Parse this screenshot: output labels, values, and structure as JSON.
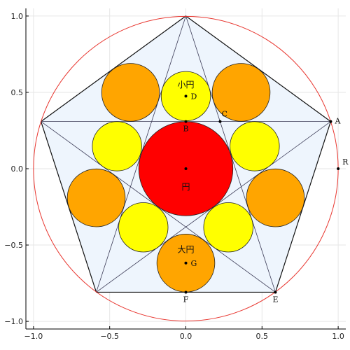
{
  "chart_data": {
    "type": "scatter",
    "title": "",
    "xlabel": "",
    "ylabel": "",
    "xlim": [
      -1.05,
      1.05
    ],
    "ylim": [
      -1.05,
      1.05
    ],
    "grid": true,
    "x_ticks": [
      {
        "value": -1.0,
        "label": "−1.0"
      },
      {
        "value": -0.5,
        "label": "−0.5"
      },
      {
        "value": 0.0,
        "label": "0.0"
      },
      {
        "value": 0.5,
        "label": "0.5"
      },
      {
        "value": 1.0,
        "label": "1.0"
      }
    ],
    "y_ticks": [
      {
        "value": -1.0,
        "label": "−1.0"
      },
      {
        "value": -0.5,
        "label": "−0.5"
      },
      {
        "value": 0.0,
        "label": "0.0"
      },
      {
        "value": 0.5,
        "label": "0.5"
      },
      {
        "value": 1.0,
        "label": "1.0"
      }
    ],
    "outer_circle": {
      "cx": 0,
      "cy": 0,
      "r": 1.0,
      "color": "#e8352e"
    },
    "pentagon": {
      "vertices": [
        [
          0,
          1.0
        ],
        [
          -0.951,
          0.309
        ],
        [
          -0.588,
          -0.809
        ],
        [
          0.588,
          -0.809
        ],
        [
          0.951,
          0.309
        ]
      ],
      "fill": "#eef5fd",
      "stroke": "#111111"
    },
    "red_circle": {
      "cx": 0,
      "cy": 0,
      "r": 0.309,
      "color": "#ff0000",
      "label": "円",
      "label_xy": [
        0,
        -0.12
      ]
    },
    "yellow_circles": {
      "color": "#ffff00",
      "items": [
        {
          "cx": 0.0,
          "cy": 0.475,
          "r": 0.162
        },
        {
          "cx": 0.452,
          "cy": 0.147,
          "r": 0.162
        },
        {
          "cx": 0.279,
          "cy": -0.384,
          "r": 0.162
        },
        {
          "cx": -0.279,
          "cy": -0.384,
          "r": 0.162
        },
        {
          "cx": -0.452,
          "cy": 0.147,
          "r": 0.162
        }
      ],
      "label": "小円",
      "label_xy": [
        0,
        0.55
      ]
    },
    "orange_circles": {
      "color": "#ffa500",
      "items": [
        {
          "cx": 0.0,
          "cy": -0.618,
          "r": 0.19
        },
        {
          "cx": 0.588,
          "cy": -0.191,
          "r": 0.19
        },
        {
          "cx": 0.363,
          "cy": 0.5,
          "r": 0.19
        },
        {
          "cx": -0.363,
          "cy": 0.5,
          "r": 0.19
        },
        {
          "cx": -0.588,
          "cy": -0.191,
          "r": 0.19
        }
      ],
      "label": "大円",
      "label_xy": [
        0,
        -0.53
      ]
    },
    "points": [
      {
        "name": "A",
        "x": 0.951,
        "y": 0.309
      },
      {
        "name": "R",
        "x": 1.0,
        "y": 0.0
      },
      {
        "name": "B",
        "x": 0.0,
        "y": 0.309
      },
      {
        "name": "C",
        "x": 0.225,
        "y": 0.309
      },
      {
        "name": "D",
        "x": 0.0,
        "y": 0.475
      },
      {
        "name": "E",
        "x": 0.588,
        "y": -0.809
      },
      {
        "name": "F",
        "x": 0.0,
        "y": -0.809
      },
      {
        "name": "G",
        "x": 0.0,
        "y": -0.618
      },
      {
        "name": "",
        "x": 0.0,
        "y": 0.0
      }
    ]
  }
}
